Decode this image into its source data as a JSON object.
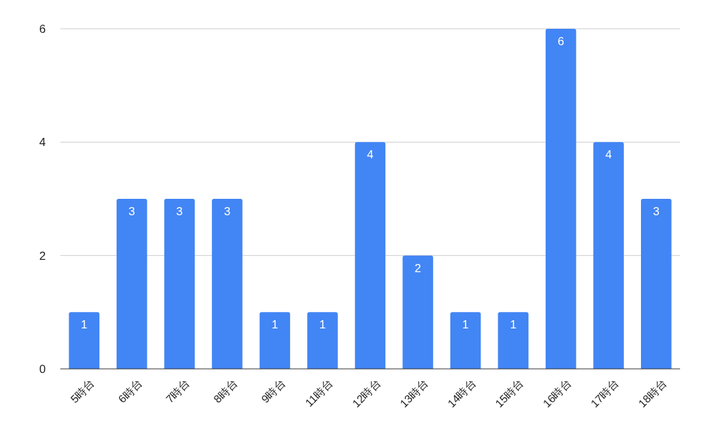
{
  "chart_data": {
    "type": "bar",
    "categories": [
      "5時台",
      "6時台",
      "7時台",
      "8時台",
      "9時台",
      "11時台",
      "12時台",
      "13時台",
      "14時台",
      "15時台",
      "16時台",
      "17時台",
      "18時台"
    ],
    "values": [
      1,
      3,
      3,
      3,
      1,
      1,
      4,
      2,
      1,
      1,
      6,
      4,
      3
    ],
    "color": "#4285f4",
    "ylim": [
      0,
      6
    ],
    "yticks": [
      0,
      2,
      4,
      6
    ],
    "grid": "y",
    "data_labels": true
  }
}
